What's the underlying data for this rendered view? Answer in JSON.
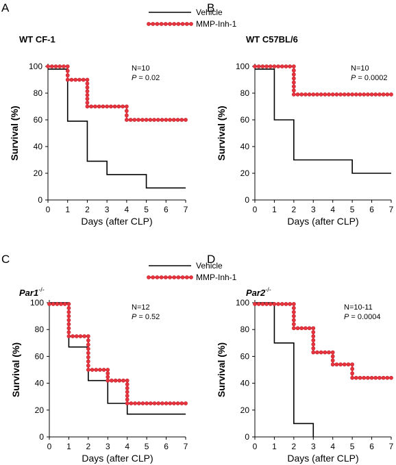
{
  "chart_data": [
    {
      "type": "line",
      "panel": "A",
      "title": "WT CF-1",
      "xlabel": "Days (after CLP)",
      "ylabel": "Survival (%)",
      "xlim": [
        0,
        7
      ],
      "ylim": [
        0,
        100
      ],
      "xticks": [
        "0",
        "1",
        "2",
        "3",
        "4",
        "5",
        "6",
        "7"
      ],
      "yticks": [
        "0",
        "20",
        "40",
        "60",
        "80",
        "100"
      ],
      "annotation": {
        "n": "N=10",
        "p_label": "P",
        "p_value": " = 0.02"
      },
      "legend_position": "top",
      "series": [
        {
          "name": "Vehicle",
          "color": "#000000",
          "x": [
            0,
            1,
            2,
            3,
            4,
            5,
            6,
            7
          ],
          "y": [
            98,
            59,
            29,
            19,
            19,
            9,
            9,
            9
          ]
        },
        {
          "name": "MMP-Inh-1",
          "color": "#e8343e",
          "x": [
            0,
            1,
            2,
            3,
            4,
            5,
            6,
            7
          ],
          "y": [
            100,
            90,
            70,
            70,
            60,
            60,
            60,
            60
          ]
        }
      ]
    },
    {
      "type": "line",
      "panel": "B",
      "title": "WT C57BL/6",
      "xlabel": "Days (after CLP)",
      "ylabel": "Survival (%)",
      "xlim": [
        0,
        7
      ],
      "ylim": [
        0,
        100
      ],
      "xticks": [
        "0",
        "1",
        "2",
        "3",
        "4",
        "5",
        "6",
        "7"
      ],
      "yticks": [
        "0",
        "20",
        "40",
        "60",
        "80",
        "100"
      ],
      "annotation": {
        "n": "N=10",
        "p_label": "P",
        "p_value": " = 0.0002"
      },
      "series": [
        {
          "name": "Vehicle",
          "color": "#000000",
          "x": [
            0,
            1,
            2,
            3,
            4,
            5,
            6,
            7
          ],
          "y": [
            98,
            60,
            30,
            30,
            30,
            20,
            20,
            20
          ]
        },
        {
          "name": "MMP-Inh-1",
          "color": "#e8343e",
          "x": [
            0,
            1,
            2,
            3,
            4,
            5,
            6,
            7
          ],
          "y": [
            100,
            100,
            79,
            79,
            79,
            79,
            79,
            79
          ]
        }
      ]
    },
    {
      "type": "line",
      "panel": "C",
      "title": "Par1",
      "title_sup": "-/-",
      "xlabel": "Days (after CLP)",
      "ylabel": "Survival (%)",
      "xlim": [
        0,
        7
      ],
      "ylim": [
        0,
        100
      ],
      "xticks": [
        "0",
        "1",
        "2",
        "3",
        "4",
        "5",
        "6",
        "7"
      ],
      "yticks": [
        "0",
        "20",
        "40",
        "60",
        "80",
        "100"
      ],
      "annotation": {
        "n": "N=12",
        "p_label": "P",
        "p_value": " = 0.52"
      },
      "legend_position": "top",
      "series": [
        {
          "name": "Vehicle",
          "color": "#000000",
          "x": [
            0,
            1,
            2,
            3,
            4,
            5,
            6,
            7
          ],
          "y": [
            100,
            67,
            42,
            25,
            17,
            17,
            17,
            17
          ]
        },
        {
          "name": "MMP-Inh-1",
          "color": "#e8343e",
          "x": [
            0,
            1,
            2,
            3,
            4,
            5,
            6,
            7
          ],
          "y": [
            99,
            75,
            50,
            42,
            25,
            25,
            25,
            25
          ]
        }
      ]
    },
    {
      "type": "line",
      "panel": "D",
      "title": "Par2",
      "title_sup": "-/-",
      "xlabel": "Days (after CLP)",
      "ylabel": "Survival (%)",
      "xlim": [
        0,
        7
      ],
      "ylim": [
        0,
        100
      ],
      "xticks": [
        "0",
        "1",
        "2",
        "3",
        "4",
        "5",
        "6",
        "7"
      ],
      "yticks": [
        "0",
        "20",
        "40",
        "60",
        "80",
        "100"
      ],
      "annotation": {
        "n": "N=10-11",
        "p_label": "P",
        "p_value": " = 0.0004"
      },
      "series": [
        {
          "name": "Vehicle",
          "color": "#000000",
          "x": [
            0,
            1,
            2,
            3
          ],
          "y": [
            100,
            70,
            10,
            0
          ]
        },
        {
          "name": "MMP-Inh-1",
          "color": "#e8343e",
          "x": [
            0,
            1,
            2,
            3,
            4,
            5,
            6,
            7
          ],
          "y": [
            99,
            99,
            81,
            63,
            54,
            44,
            44,
            44
          ]
        }
      ]
    }
  ]
}
